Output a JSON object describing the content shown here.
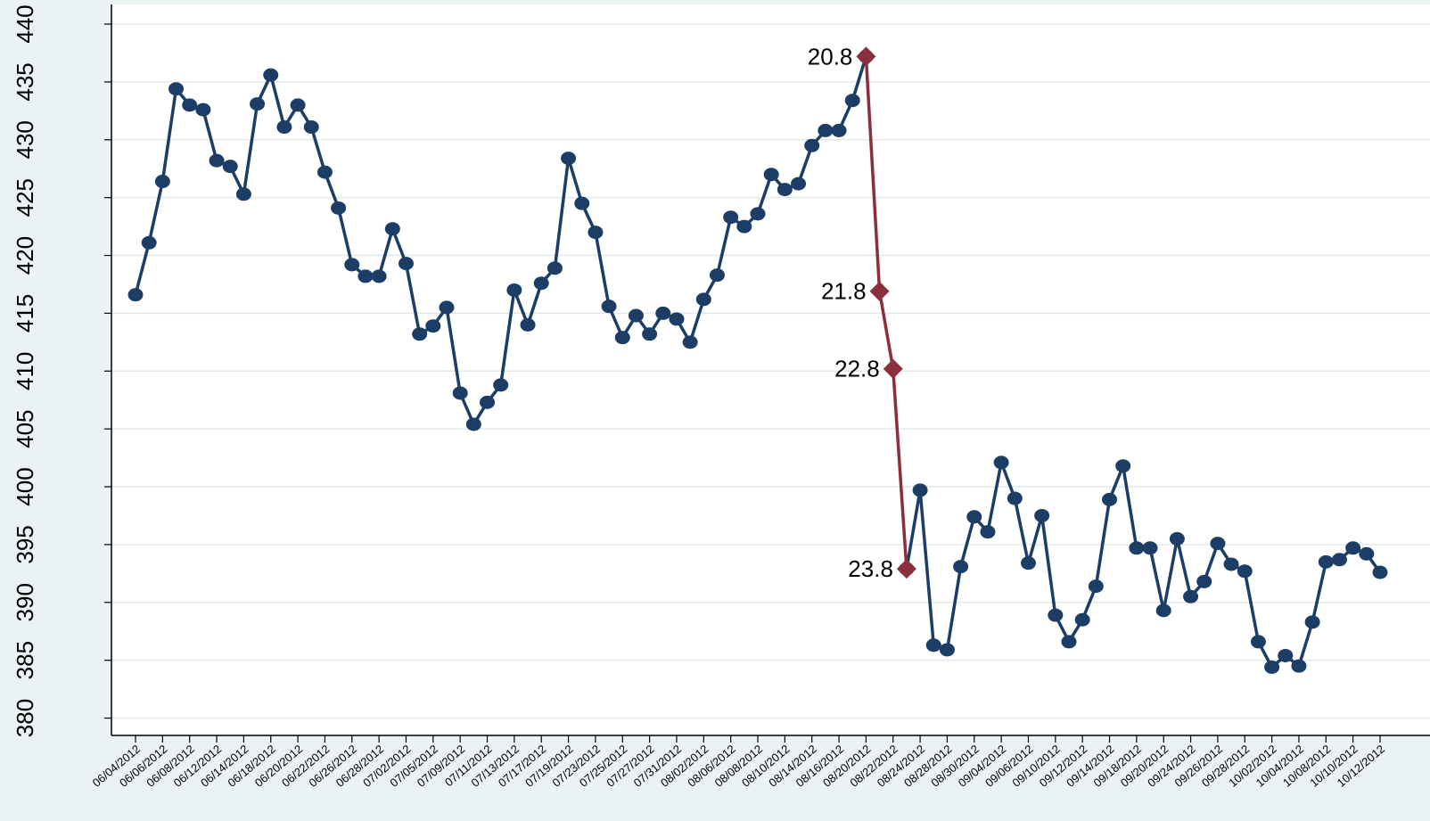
{
  "chart_data": {
    "type": "line",
    "categories": [
      "06/04/2012",
      null,
      "06/06/2012",
      null,
      "06/08/2012",
      null,
      "06/12/2012",
      null,
      "06/14/2012",
      null,
      "06/18/2012",
      null,
      "06/20/2012",
      null,
      "06/22/2012",
      null,
      "06/26/2012",
      null,
      "06/28/2012",
      null,
      "07/02/2012",
      null,
      "07/05/2012",
      null,
      "07/09/2012",
      null,
      "07/11/2012",
      null,
      "07/13/2012",
      null,
      "07/17/2012",
      null,
      "07/19/2012",
      null,
      "07/23/2012",
      null,
      "07/25/2012",
      null,
      "07/27/2012",
      null,
      "07/31/2012",
      null,
      "08/02/2012",
      null,
      "08/06/2012",
      null,
      "08/08/2012",
      null,
      "08/10/2012",
      null,
      "08/14/2012",
      null,
      "08/16/2012",
      null,
      "08/20/2012",
      null,
      "08/22/2012",
      null,
      "08/24/2012",
      null,
      "08/28/2012",
      null,
      "08/30/2012",
      null,
      "09/04/2012",
      null,
      "09/06/2012",
      null,
      "09/10/2012",
      null,
      "09/12/2012",
      null,
      "09/14/2012",
      null,
      "09/18/2012",
      null,
      "09/20/2012",
      null,
      "09/24/2012",
      null,
      "09/26/2012",
      null,
      "09/28/2012",
      null,
      "10/02/2012",
      null,
      "10/04/2012",
      null,
      "10/08/2012",
      null,
      "10/10/2012",
      null,
      "10/12/2012"
    ],
    "series": [
      {
        "color": "#1b3d66",
        "marker": "circle",
        "values": [
          416.6,
          421.1,
          426.4,
          434.4,
          433.0,
          432.6,
          428.2,
          427.7,
          425.3,
          433.1,
          435.6,
          431.1,
          433.0,
          431.1,
          427.2,
          424.1,
          419.2,
          418.2,
          418.2,
          422.3,
          419.3,
          413.2,
          413.9,
          415.5,
          408.1,
          405.4,
          407.3,
          408.8,
          417.0,
          414.0,
          417.6,
          418.9,
          428.4,
          424.5,
          422.0,
          415.6,
          412.9,
          414.8,
          413.2,
          415.0,
          414.5,
          412.5,
          416.2,
          418.3,
          423.3,
          422.5,
          423.6,
          427.0,
          425.7,
          426.2,
          429.5,
          430.8,
          430.8,
          433.4,
          437.2,
          null,
          null,
          392.9,
          399.7,
          386.3,
          385.9,
          393.1,
          397.4,
          396.1,
          402.1,
          399.0,
          393.4,
          397.5,
          388.9,
          386.6,
          388.5,
          391.4,
          398.9,
          401.8,
          394.7,
          394.7,
          389.3,
          395.5,
          390.5,
          391.8,
          395.1,
          393.3,
          392.7,
          386.6,
          384.4,
          385.4,
          384.5,
          388.3,
          393.5,
          393.7,
          394.7,
          394.2,
          392.6
        ]
      },
      {
        "color": "#8b2f3c",
        "marker": "diamond",
        "values": [
          null,
          null,
          null,
          null,
          null,
          null,
          null,
          null,
          null,
          null,
          null,
          null,
          null,
          null,
          null,
          null,
          null,
          null,
          null,
          null,
          null,
          null,
          null,
          null,
          null,
          null,
          null,
          null,
          null,
          null,
          null,
          null,
          null,
          null,
          null,
          null,
          null,
          null,
          null,
          null,
          null,
          null,
          null,
          null,
          null,
          null,
          null,
          null,
          null,
          null,
          null,
          null,
          null,
          null,
          437.2,
          416.9,
          410.2,
          392.9,
          null,
          null,
          null,
          null,
          null,
          null,
          null,
          null,
          null,
          null,
          null,
          null,
          null,
          null,
          null,
          null,
          null,
          null,
          null,
          null,
          null,
          null,
          null,
          null,
          null,
          null,
          null,
          null,
          null,
          null,
          null,
          null,
          null,
          null,
          null
        ],
        "labels": [
          null,
          null,
          null,
          null,
          null,
          null,
          null,
          null,
          null,
          null,
          null,
          null,
          null,
          null,
          null,
          null,
          null,
          null,
          null,
          null,
          null,
          null,
          null,
          null,
          null,
          null,
          null,
          null,
          null,
          null,
          null,
          null,
          null,
          null,
          null,
          null,
          null,
          null,
          null,
          null,
          null,
          null,
          null,
          null,
          null,
          null,
          null,
          null,
          null,
          null,
          null,
          null,
          null,
          null,
          "20.8",
          "21.8",
          "22.8",
          "23.8",
          null,
          null,
          null,
          null,
          null,
          null,
          null,
          null,
          null,
          null,
          null,
          null,
          null,
          null,
          null,
          null,
          null,
          null,
          null,
          null,
          null,
          null,
          null,
          null,
          null,
          null,
          null,
          null,
          null,
          null,
          null,
          null,
          null,
          null,
          null
        ]
      }
    ],
    "ylim": [
      378.5,
      441.7
    ],
    "yticks": [
      380,
      385,
      390,
      395,
      400,
      405,
      410,
      415,
      420,
      425,
      430,
      435,
      440
    ],
    "grid": true
  }
}
